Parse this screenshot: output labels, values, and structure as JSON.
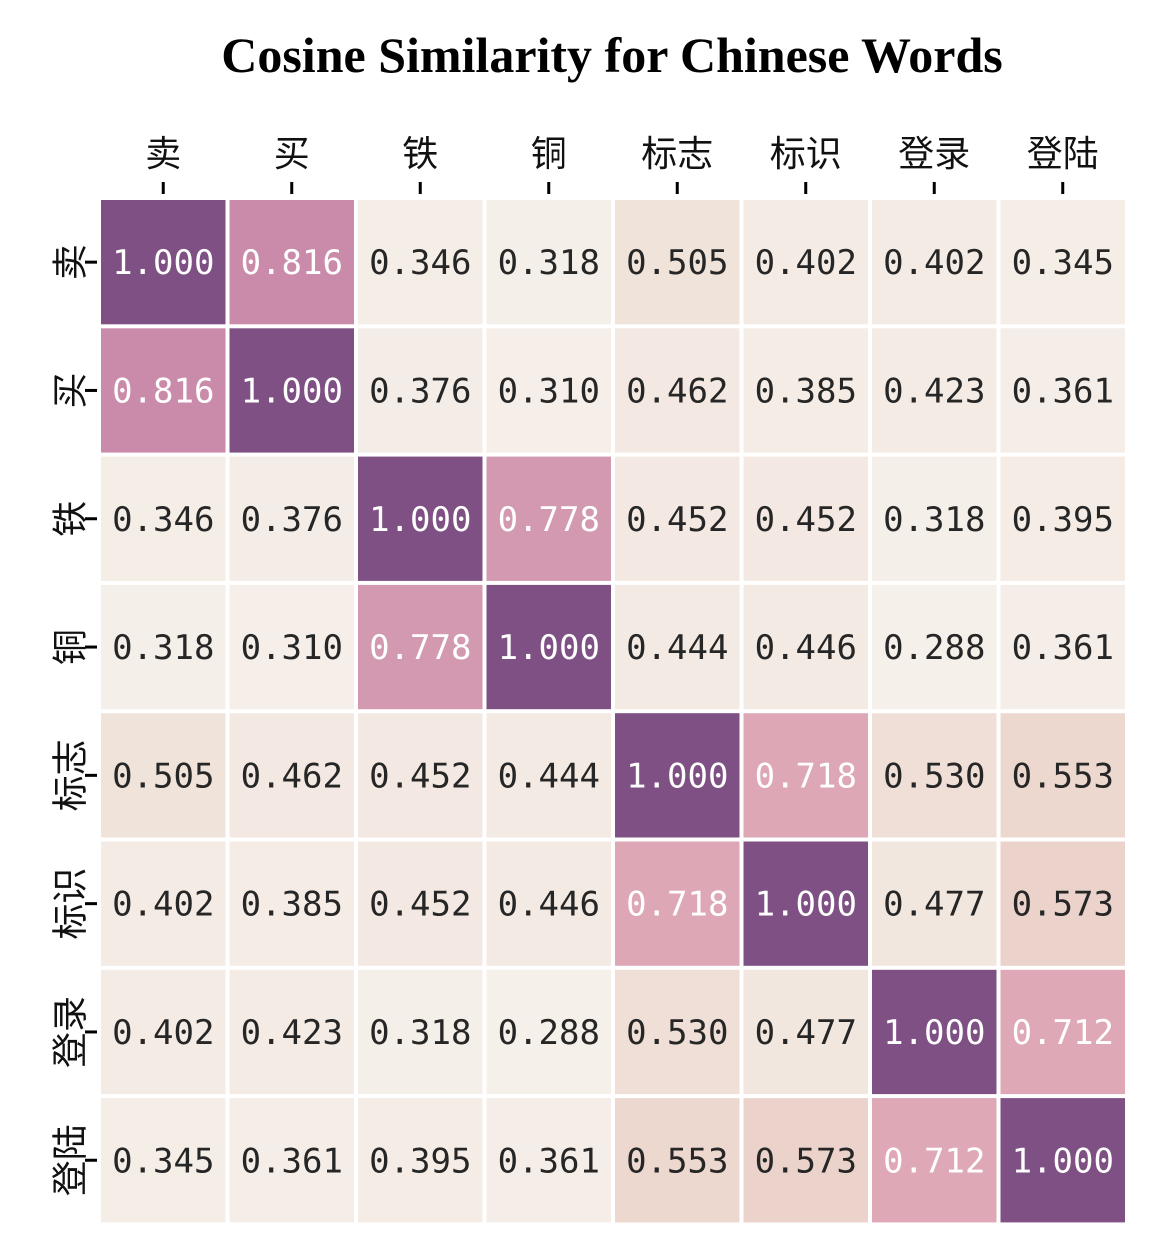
{
  "chart_data": {
    "type": "heatmap",
    "title": "Cosine Similarity for Chinese Words",
    "xlabel": "",
    "ylabel": "",
    "x_categories": [
      "卖",
      "买",
      "铁",
      "铜",
      "标志",
      "标识",
      "登录",
      "登陆"
    ],
    "y_categories": [
      "卖",
      "买",
      "铁",
      "铜",
      "标志",
      "标识",
      "登录",
      "登陆"
    ],
    "values": [
      [
        1.0,
        0.816,
        0.346,
        0.318,
        0.505,
        0.402,
        0.402,
        0.345
      ],
      [
        0.816,
        1.0,
        0.376,
        0.31,
        0.462,
        0.385,
        0.423,
        0.361
      ],
      [
        0.346,
        0.376,
        1.0,
        0.778,
        0.452,
        0.452,
        0.318,
        0.395
      ],
      [
        0.318,
        0.31,
        0.778,
        1.0,
        0.444,
        0.446,
        0.288,
        0.361
      ],
      [
        0.505,
        0.462,
        0.452,
        0.444,
        1.0,
        0.718,
        0.53,
        0.553
      ],
      [
        0.402,
        0.385,
        0.452,
        0.446,
        0.718,
        1.0,
        0.477,
        0.573
      ],
      [
        0.402,
        0.423,
        0.318,
        0.288,
        0.53,
        0.477,
        1.0,
        0.712
      ],
      [
        0.345,
        0.361,
        0.395,
        0.361,
        0.553,
        0.573,
        0.712,
        1.0
      ]
    ],
    "cell_labels": [
      [
        "1.000",
        "0.816",
        "0.346",
        "0.318",
        "0.505",
        "0.402",
        "0.402",
        "0.345"
      ],
      [
        "0.816",
        "1.000",
        "0.376",
        "0.310",
        "0.462",
        "0.385",
        "0.423",
        "0.361"
      ],
      [
        "0.346",
        "0.376",
        "1.000",
        "0.778",
        "0.452",
        "0.452",
        "0.318",
        "0.395"
      ],
      [
        "0.318",
        "0.310",
        "0.778",
        "1.000",
        "0.444",
        "0.446",
        "0.288",
        "0.361"
      ],
      [
        "0.505",
        "0.462",
        "0.452",
        "0.444",
        "1.000",
        "0.718",
        "0.530",
        "0.553"
      ],
      [
        "0.402",
        "0.385",
        "0.452",
        "0.446",
        "0.718",
        "1.000",
        "0.477",
        "0.573"
      ],
      [
        "0.402",
        "0.423",
        "0.318",
        "0.288",
        "0.530",
        "0.477",
        "1.000",
        "0.712"
      ],
      [
        "0.345",
        "0.361",
        "0.395",
        "0.361",
        "0.553",
        "0.573",
        "0.712",
        "1.000"
      ]
    ],
    "x_tick_position": "top",
    "colorbar": false,
    "color_scale": {
      "stops": [
        {
          "value": 0.288,
          "color": "#f6f0ea"
        },
        {
          "value": 0.46,
          "color": "#f3e9e2"
        },
        {
          "value": 0.53,
          "color": "#efdfd6"
        },
        {
          "value": 0.58,
          "color": "#ead0c9"
        },
        {
          "value": 0.7,
          "color": "#e0abb6"
        },
        {
          "value": 0.74,
          "color": "#d9a2b6"
        },
        {
          "value": 0.78,
          "color": "#d298b0"
        },
        {
          "value": 0.82,
          "color": "#c98aa9"
        },
        {
          "value": 1.0,
          "color": "#7e5084"
        }
      ],
      "light_text_color": "#ffffff",
      "dark_text_color": "#262626"
    },
    "cell_border_color": "#ffffff"
  }
}
